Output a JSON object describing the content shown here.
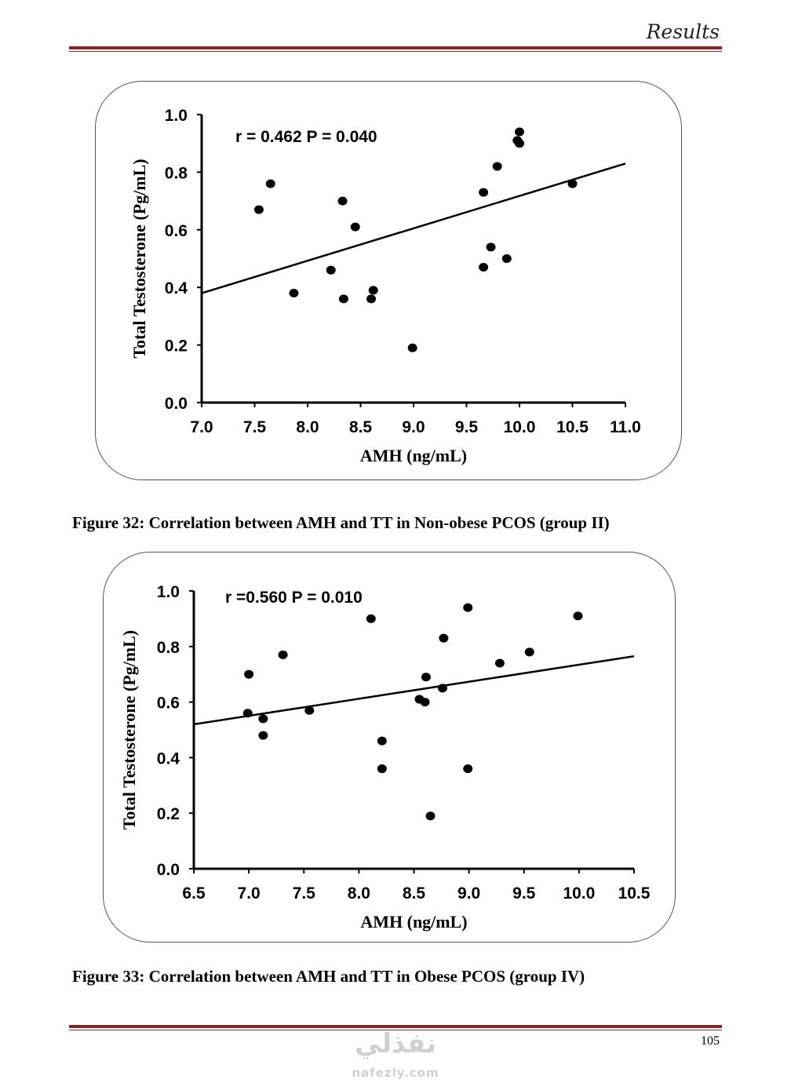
{
  "header": {
    "section": "Results"
  },
  "figures": [
    {
      "caption": "Figure 32: Correlation between AMH and TT in Non-obese PCOS (group II)"
    },
    {
      "caption": "Figure 33: Correlation between AMH and TT in Obese PCOS (group IV)"
    }
  ],
  "footer": {
    "page_number": "105",
    "watermark_arabic": "نفذلي",
    "watermark_latin": "nafezly.com"
  },
  "chart_data": [
    {
      "type": "scatter",
      "xlabel": "AMH (ng/mL)",
      "ylabel": "Total Testosterone (Pg/mL)",
      "annotation": "r = 0.462 P = 0.040",
      "xlim": [
        7.0,
        11.0
      ],
      "ylim": [
        0.0,
        1.0
      ],
      "x_ticks": [
        "7.0",
        "7.5",
        "8.0",
        "8.5",
        "9.0",
        "9.5",
        "10.0",
        "10.5",
        "11.0"
      ],
      "y_ticks": [
        "0.0",
        "0.2",
        "0.4",
        "0.6",
        "0.8",
        "1.0"
      ],
      "grid": false,
      "points": [
        {
          "x": 7.54,
          "y": 0.67
        },
        {
          "x": 7.65,
          "y": 0.76
        },
        {
          "x": 7.87,
          "y": 0.38
        },
        {
          "x": 8.22,
          "y": 0.46
        },
        {
          "x": 8.33,
          "y": 0.7
        },
        {
          "x": 8.34,
          "y": 0.36
        },
        {
          "x": 8.45,
          "y": 0.61
        },
        {
          "x": 8.6,
          "y": 0.36
        },
        {
          "x": 8.62,
          "y": 0.39
        },
        {
          "x": 8.99,
          "y": 0.19
        },
        {
          "x": 9.66,
          "y": 0.73
        },
        {
          "x": 9.66,
          "y": 0.47
        },
        {
          "x": 9.73,
          "y": 0.54
        },
        {
          "x": 9.79,
          "y": 0.82
        },
        {
          "x": 9.88,
          "y": 0.5
        },
        {
          "x": 9.98,
          "y": 0.91
        },
        {
          "x": 10.0,
          "y": 0.94
        },
        {
          "x": 10.0,
          "y": 0.9
        },
        {
          "x": 10.5,
          "y": 0.76
        }
      ],
      "trendline": {
        "x": [
          7.0,
          11.0
        ],
        "y": [
          0.38,
          0.83
        ]
      }
    },
    {
      "type": "scatter",
      "xlabel": "AMH (ng/mL)",
      "ylabel": "Total Testosterone (Pg/mL)",
      "annotation": "r =0.560 P = 0.010",
      "xlim": [
        6.5,
        10.5
      ],
      "ylim": [
        0.0,
        1.0
      ],
      "x_ticks": [
        "6.5",
        "7.0",
        "7.5",
        "8.0",
        "8.5",
        "9.0",
        "9.5",
        "10.0",
        "10.5"
      ],
      "y_ticks": [
        "0.0",
        "0.2",
        "0.4",
        "0.6",
        "0.8",
        "1.0"
      ],
      "grid": false,
      "points": [
        {
          "x": 7.0,
          "y": 0.7
        },
        {
          "x": 6.99,
          "y": 0.56
        },
        {
          "x": 7.13,
          "y": 0.54
        },
        {
          "x": 7.13,
          "y": 0.48
        },
        {
          "x": 7.31,
          "y": 0.77
        },
        {
          "x": 7.55,
          "y": 0.57
        },
        {
          "x": 8.11,
          "y": 0.9
        },
        {
          "x": 8.21,
          "y": 0.46
        },
        {
          "x": 8.21,
          "y": 0.36
        },
        {
          "x": 8.55,
          "y": 0.61
        },
        {
          "x": 8.6,
          "y": 0.6
        },
        {
          "x": 8.61,
          "y": 0.69
        },
        {
          "x": 8.65,
          "y": 0.19
        },
        {
          "x": 8.76,
          "y": 0.65
        },
        {
          "x": 8.77,
          "y": 0.83
        },
        {
          "x": 8.99,
          "y": 0.94
        },
        {
          "x": 8.99,
          "y": 0.36
        },
        {
          "x": 9.28,
          "y": 0.74
        },
        {
          "x": 9.55,
          "y": 0.78
        },
        {
          "x": 9.99,
          "y": 0.91
        }
      ],
      "trendline": {
        "x": [
          6.5,
          10.5
        ],
        "y": [
          0.52,
          0.765
        ]
      }
    }
  ]
}
